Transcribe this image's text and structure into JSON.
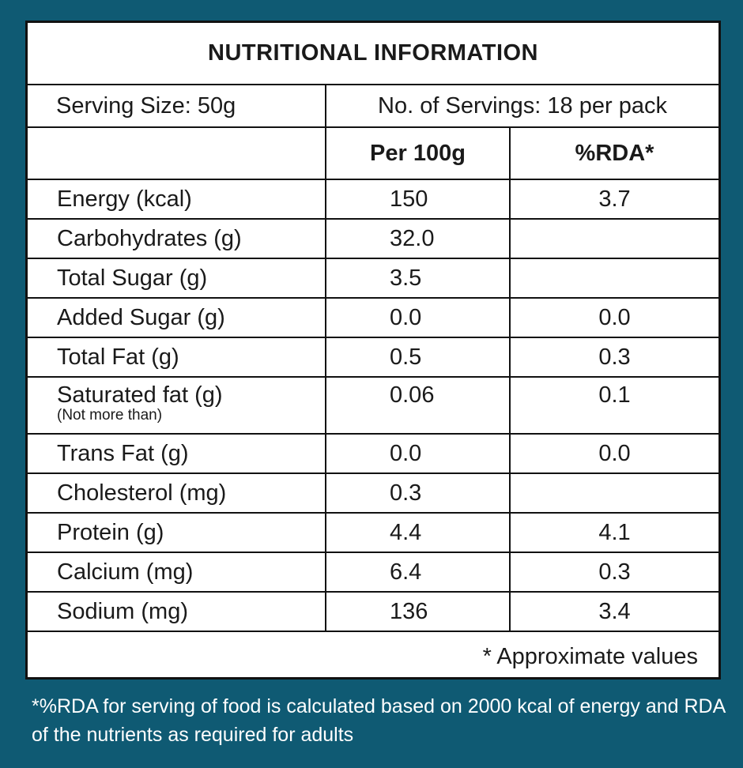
{
  "title": "NUTRITIONAL INFORMATION",
  "serving_size": "Serving Size: 50g",
  "servings": "No. of Servings: 18 per pack",
  "headers": {
    "per100g": "Per 100g",
    "rda": "%RDA*"
  },
  "rows": [
    {
      "label": "Energy (kcal)",
      "per100g": "150",
      "rda": "3.7"
    },
    {
      "label": "Carbohydrates (g)",
      "per100g": "32.0",
      "rda": ""
    },
    {
      "label": "Total Sugar (g)",
      "per100g": "3.5",
      "rda": ""
    },
    {
      "label": "Added Sugar (g)",
      "per100g": "0.0",
      "rda": "0.0"
    },
    {
      "label": "Total Fat (g)",
      "per100g": "0.5",
      "rda": "0.3"
    },
    {
      "label": "Saturated fat (g)",
      "note": "(Not more than)",
      "per100g": "0.06",
      "rda": "0.1"
    },
    {
      "label": "Trans Fat (g)",
      "per100g": "0.0",
      "rda": "0.0"
    },
    {
      "label": "Cholesterol (mg)",
      "per100g": "0.3",
      "rda": ""
    },
    {
      "label": "Protein (g)",
      "per100g": "4.4",
      "rda": "4.1"
    },
    {
      "label": "Calcium (mg)",
      "per100g": "6.4",
      "rda": "0.3"
    },
    {
      "label": "Sodium (mg)",
      "per100g": "136",
      "rda": "3.4"
    }
  ],
  "approx_note": "* Approximate values",
  "footnote": "*%RDA  for serving of food is calculated based on 2000 kcal of energy and RDA of the nutrients as required for adults",
  "colors": {
    "background": "#0f5a73",
    "panel": "#ffffff",
    "text": "#1a1a1a"
  }
}
